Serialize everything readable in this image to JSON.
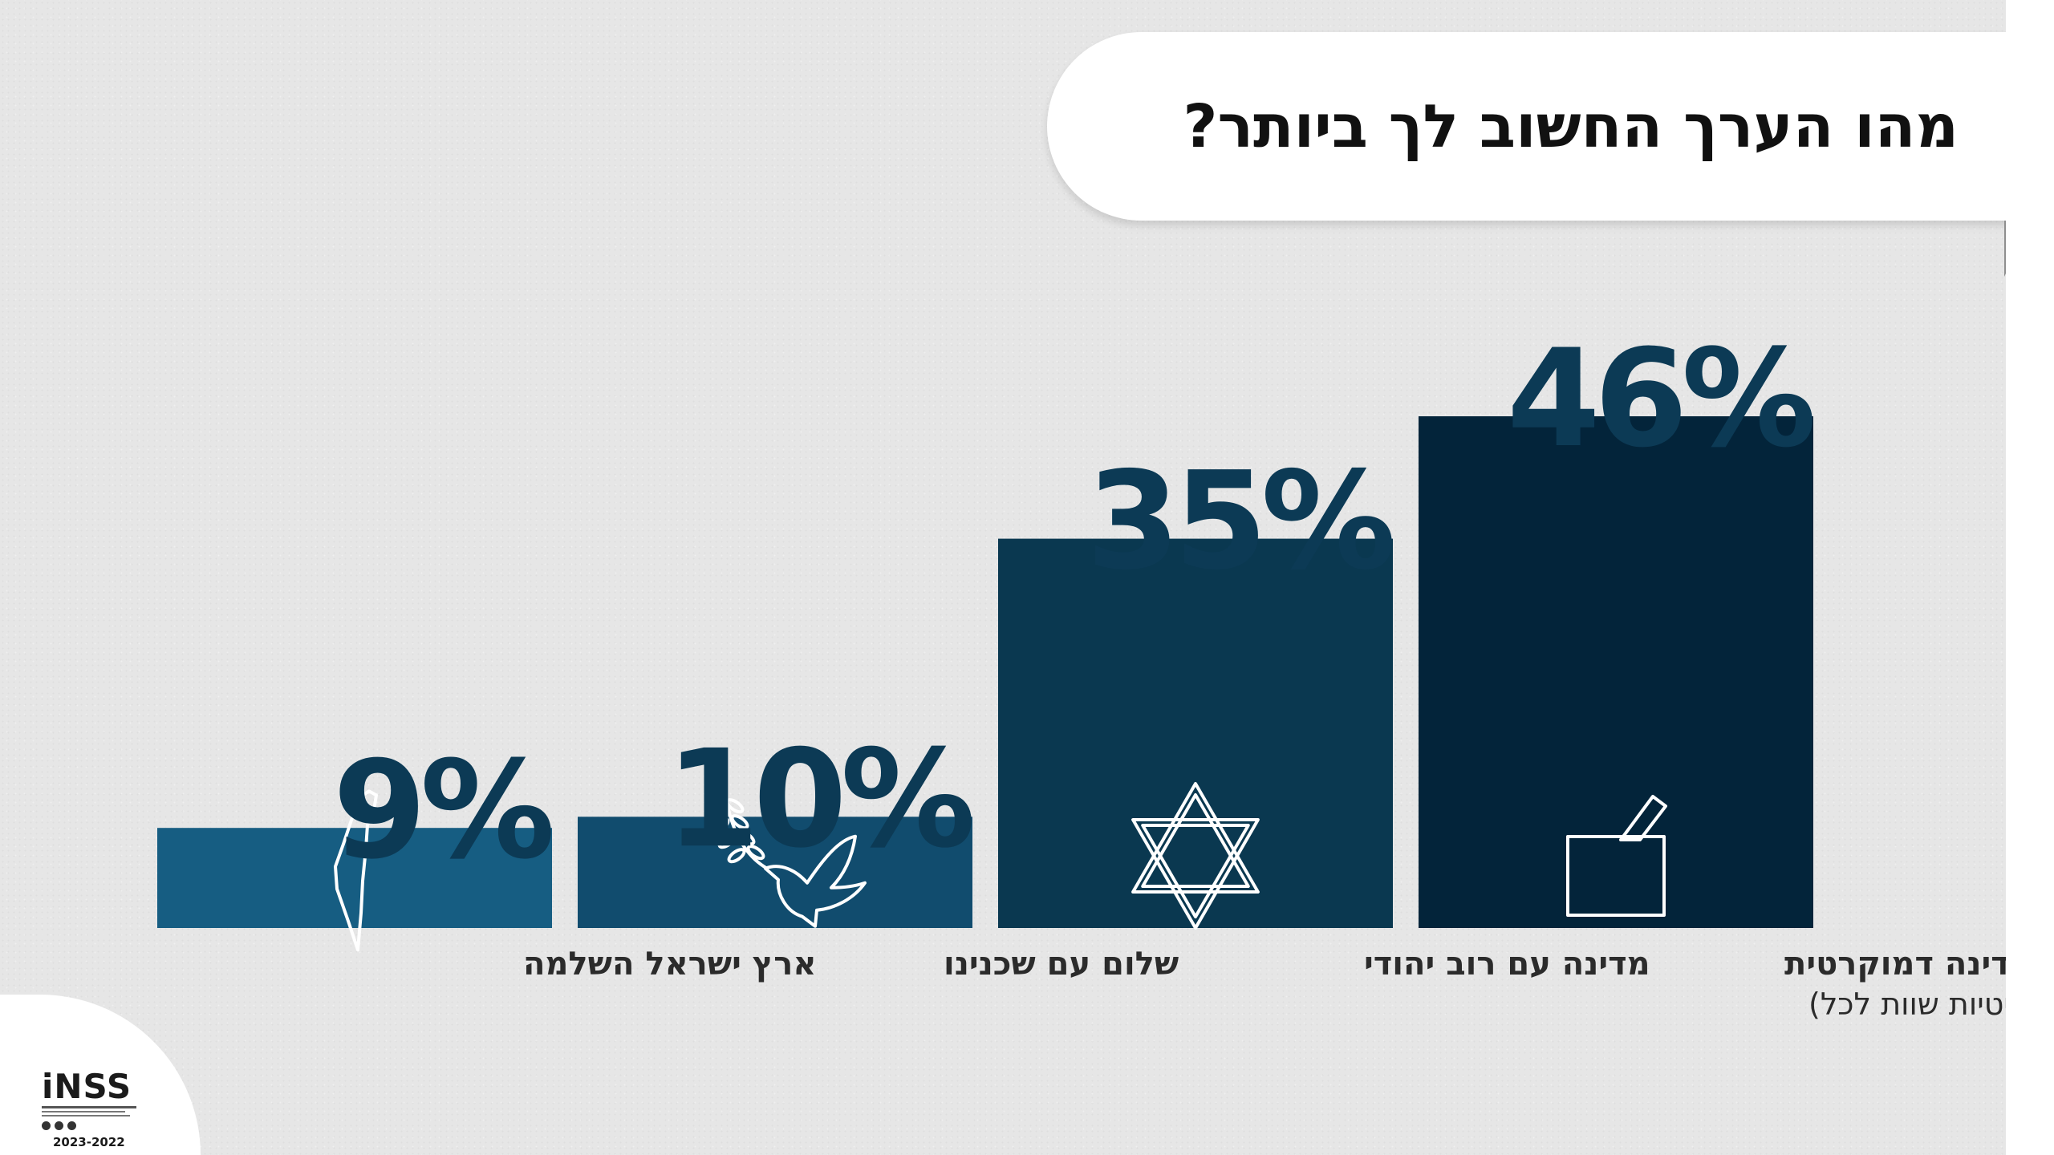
{
  "title": "מהו הערך החשוב לך ביותר?",
  "chart_data": {
    "type": "bar",
    "title": "מהו הערך החשוב לך ביותר?",
    "categories": [
      "ארץ ישראל השלמה",
      "שלום עם שכנינו",
      "מדינה עם רוב יהודי",
      "מדינה דמוקרטית"
    ],
    "category_subtitles": [
      "",
      "",
      "",
      "(זכויות פוליטיות שוות לכל)"
    ],
    "values": [
      9,
      10,
      35,
      46
    ],
    "value_labels": [
      "9%",
      "10%",
      "35%",
      "46%"
    ],
    "icons": [
      "israel-map-icon",
      "dove-olive-branch-icon",
      "star-of-david-icon",
      "ballot-box-icon"
    ],
    "colors": [
      "#165d82",
      "#114c6e",
      "#0a3850",
      "#03243a"
    ],
    "label_color": "#0c3a55",
    "ylim": [
      0,
      46
    ],
    "grid": false,
    "legend": "none"
  },
  "logo": {
    "mark": "iNSS",
    "years": "2023-2022"
  }
}
